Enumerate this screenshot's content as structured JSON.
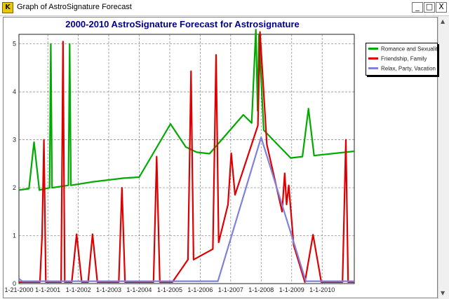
{
  "window": {
    "title": "Graph of AstroSignature Forecast",
    "icon": "app-logo-icon",
    "buttons": {
      "minimize": "_",
      "maximize": "□",
      "close": "X"
    }
  },
  "colors": {
    "title": "#00008b",
    "romance": "#00aa00",
    "friendship": "#dd0000",
    "relax": "#8080dd",
    "grid": "#808080"
  },
  "chart_data": {
    "type": "line",
    "title": "2000-2010 AstroSignature Forecast for Astrosignature",
    "xlabel": "",
    "ylabel": "",
    "xlim": [
      "2000-01-21",
      "2011-01-21"
    ],
    "ylim": [
      0,
      5.2
    ],
    "yticks": [
      "0",
      "1",
      "2",
      "3",
      "4",
      "5"
    ],
    "xticks": [
      {
        "label": "1-21-2000",
        "date": "2000-01-21"
      },
      {
        "label": "1-1-2001",
        "date": "2001-01-01"
      },
      {
        "label": "1-1-2002",
        "date": "2002-01-01"
      },
      {
        "label": "1-1-2003",
        "date": "2003-01-01"
      },
      {
        "label": "1-1-2004",
        "date": "2004-01-01"
      },
      {
        "label": "1-1-2005",
        "date": "2005-01-01"
      },
      {
        "label": "1-1-2006",
        "date": "2006-01-01"
      },
      {
        "label": "1-1-2007",
        "date": "2007-01-01"
      },
      {
        "label": "1-1-2008",
        "date": "2008-01-01"
      },
      {
        "label": "1-1-2009",
        "date": "2009-01-01"
      },
      {
        "label": "1-1-2010",
        "date": "2010-01-01"
      }
    ],
    "grid": true,
    "legend_position": "top-right",
    "series": [
      {
        "name": "Romance and Sexuality",
        "color": "#00aa00",
        "points": [
          [
            "2000-01-21",
            1.95
          ],
          [
            "2000-05-20",
            1.98
          ],
          [
            "2000-07-20",
            2.95
          ],
          [
            "2000-09-22",
            1.95
          ],
          [
            "2001-01-22",
            2.0
          ],
          [
            "2001-02-06",
            5.0
          ],
          [
            "2001-02-21",
            2.0
          ],
          [
            "2001-09-05",
            2.05
          ],
          [
            "2001-09-20",
            5.0
          ],
          [
            "2001-10-05",
            2.05
          ],
          [
            "2002-06-10",
            2.12
          ],
          [
            "2003-06-28",
            2.2
          ],
          [
            "2004-01-01",
            2.22
          ],
          [
            "2005-01-10",
            3.33
          ],
          [
            "2005-07-12",
            2.85
          ],
          [
            "2005-11-19",
            2.74
          ],
          [
            "2006-04-23",
            2.71
          ],
          [
            "2007-06-01",
            3.52
          ],
          [
            "2007-09-09",
            3.35
          ],
          [
            "2007-10-30",
            5.3
          ],
          [
            "2007-11-20",
            3.6
          ],
          [
            "2007-12-05",
            5.2
          ],
          [
            "2008-02-01",
            3.2
          ],
          [
            "2008-12-20",
            2.62
          ],
          [
            "2009-05-10",
            2.65
          ],
          [
            "2009-07-21",
            3.65
          ],
          [
            "2009-09-26",
            2.67
          ],
          [
            "2011-01-21",
            2.76
          ]
        ]
      },
      {
        "name": "Friendship, Family",
        "color": "#dd0000",
        "points": [
          [
            "2000-01-21",
            0.03
          ],
          [
            "2000-09-28",
            0.03
          ],
          [
            "2000-10-24",
            1.0
          ],
          [
            "2000-11-15",
            3.0
          ],
          [
            "2000-12-08",
            0.03
          ],
          [
            "2001-06-09",
            0.03
          ],
          [
            "2001-07-02",
            5.05
          ],
          [
            "2001-07-23",
            0.03
          ],
          [
            "2001-10-15",
            0.03
          ],
          [
            "2001-12-12",
            1.03
          ],
          [
            "2002-02-11",
            0.03
          ],
          [
            "2002-04-29",
            0.03
          ],
          [
            "2002-06-21",
            1.03
          ],
          [
            "2002-08-18",
            0.03
          ],
          [
            "2003-05-01",
            0.03
          ],
          [
            "2003-06-08",
            2.0
          ],
          [
            "2003-07-15",
            0.03
          ],
          [
            "2004-06-20",
            0.03
          ],
          [
            "2004-07-28",
            2.65
          ],
          [
            "2004-09-04",
            0.03
          ],
          [
            "2005-02-01",
            0.03
          ],
          [
            "2005-08-07",
            0.5
          ],
          [
            "2005-09-13",
            4.43
          ],
          [
            "2005-10-13",
            0.5
          ],
          [
            "2006-06-01",
            0.72
          ],
          [
            "2006-07-10",
            4.77
          ],
          [
            "2006-08-10",
            0.86
          ],
          [
            "2006-11-30",
            1.65
          ],
          [
            "2007-01-08",
            2.72
          ],
          [
            "2007-02-22",
            1.85
          ],
          [
            "2007-11-23",
            3.3
          ],
          [
            "2007-12-18",
            5.25
          ],
          [
            "2008-03-10",
            2.9
          ],
          [
            "2008-09-08",
            1.5
          ],
          [
            "2008-10-09",
            2.3
          ],
          [
            "2008-11-01",
            1.65
          ],
          [
            "2008-11-27",
            2.05
          ],
          [
            "2009-01-25",
            0.8
          ],
          [
            "2009-06-08",
            0.03
          ],
          [
            "2009-09-14",
            1.02
          ],
          [
            "2009-12-22",
            0.03
          ],
          [
            "2010-09-02",
            0.03
          ],
          [
            "2010-10-12",
            3.0
          ],
          [
            "2010-11-08",
            0.03
          ],
          [
            "2011-01-21",
            0.03
          ]
        ]
      },
      {
        "name": "Relax, Party, Vacation",
        "color": "#8080dd",
        "points": [
          [
            "2000-01-21",
            0.1
          ],
          [
            "2000-03-01",
            0.05
          ],
          [
            "2006-08-01",
            0.05
          ],
          [
            "2008-01-01",
            3.05
          ],
          [
            "2009-06-19",
            0.05
          ],
          [
            "2011-01-21",
            0.05
          ]
        ]
      }
    ]
  }
}
